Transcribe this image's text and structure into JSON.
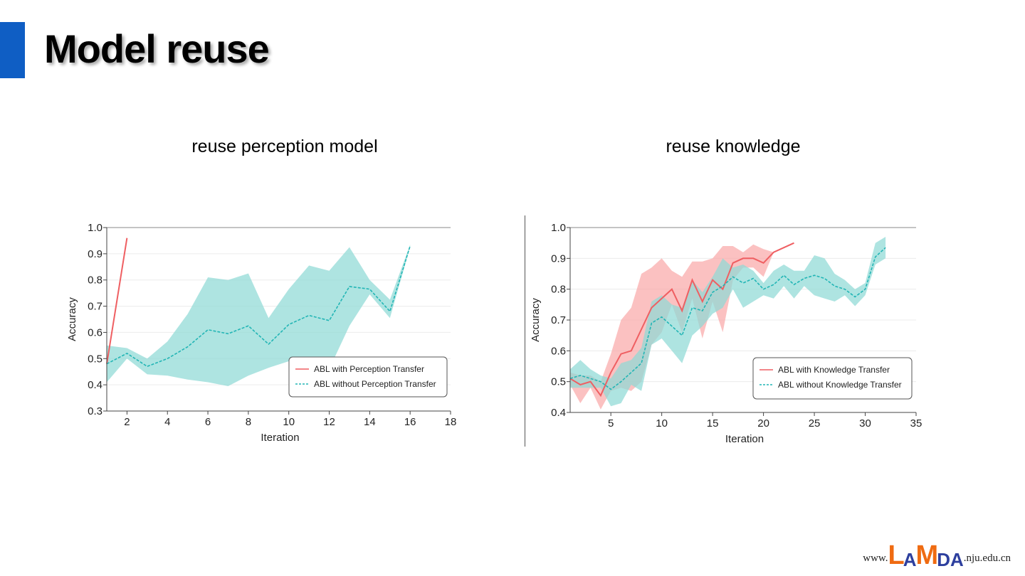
{
  "slide": {
    "title": "Model reuse"
  },
  "footer": {
    "prefix": "www.",
    "logo_letters": [
      "L",
      "A",
      "M",
      "DA"
    ],
    "suffix": ".nju.edu.cn"
  },
  "colors": {
    "accent_bar": "#0f5ec4",
    "red_line": "#ef5f62",
    "red_band": "#f9b2b2",
    "teal_line": "#22b5b5",
    "teal_band": "#a6e2e0",
    "logo_orange": "#ef6b12",
    "logo_blue": "#2d3f9e"
  },
  "chart_data": [
    {
      "type": "line",
      "title": "reuse perception model",
      "xlabel": "Iteration",
      "ylabel": "Accuracy",
      "xlim": [
        1,
        18
      ],
      "ylim": [
        0.3,
        1.0
      ],
      "xticks": [
        2,
        4,
        6,
        8,
        10,
        12,
        14,
        16,
        18
      ],
      "yticks": [
        0.3,
        0.4,
        0.5,
        0.6,
        0.7,
        0.8,
        0.9,
        1.0
      ],
      "grid": "horizontal",
      "legend_position": "bottom-right",
      "series": [
        {
          "name": "ABL  with Perception Transfer",
          "style": "solid",
          "color": "#ef5f62",
          "x": [
            1,
            2
          ],
          "values": [
            0.48,
            0.96
          ]
        },
        {
          "name": "ABL  without Perception Transfer",
          "style": "dashed",
          "color": "#22b5b5",
          "x": [
            1,
            2,
            3,
            4,
            5,
            6,
            7,
            8,
            9,
            10,
            11,
            12,
            13,
            14,
            15,
            16
          ],
          "values": [
            0.48,
            0.52,
            0.47,
            0.5,
            0.545,
            0.61,
            0.595,
            0.625,
            0.555,
            0.63,
            0.665,
            0.645,
            0.775,
            0.765,
            0.68,
            0.93
          ],
          "band_upper": [
            0.55,
            0.54,
            0.5,
            0.565,
            0.67,
            0.81,
            0.8,
            0.825,
            0.655,
            0.765,
            0.855,
            0.835,
            0.925,
            0.8,
            0.725,
            0.935
          ],
          "band_lower": [
            0.41,
            0.5,
            0.44,
            0.435,
            0.42,
            0.41,
            0.395,
            0.435,
            0.465,
            0.49,
            0.475,
            0.46,
            0.625,
            0.745,
            0.655,
            0.925
          ]
        }
      ]
    },
    {
      "type": "line",
      "title": "reuse knowledge",
      "xlabel": "Iteration",
      "ylabel": "Accuracy",
      "xlim": [
        1,
        35
      ],
      "ylim": [
        0.4,
        1.0
      ],
      "xticks": [
        5,
        10,
        15,
        20,
        25,
        30,
        35
      ],
      "yticks": [
        0.4,
        0.5,
        0.6,
        0.7,
        0.8,
        0.9,
        1.0
      ],
      "grid": "horizontal",
      "legend_position": "bottom-right",
      "series": [
        {
          "name": "ABL  with Knowledge Transfer",
          "style": "solid",
          "color": "#ef5f62",
          "x": [
            1,
            2,
            3,
            4,
            5,
            6,
            7,
            8,
            9,
            10,
            11,
            12,
            13,
            14,
            15,
            16,
            17,
            18,
            19,
            20,
            21,
            22,
            23
          ],
          "values": [
            0.51,
            0.49,
            0.5,
            0.455,
            0.53,
            0.59,
            0.6,
            0.67,
            0.74,
            0.77,
            0.8,
            0.73,
            0.83,
            0.76,
            0.83,
            0.8,
            0.885,
            0.9,
            0.9,
            0.885,
            0.92,
            0.935,
            0.95
          ],
          "band_upper": [
            0.53,
            0.52,
            0.52,
            0.5,
            0.59,
            0.7,
            0.74,
            0.85,
            0.87,
            0.9,
            0.86,
            0.84,
            0.89,
            0.89,
            0.9,
            0.94,
            0.94,
            0.92,
            0.945,
            0.93,
            0.92,
            0.935,
            0.95
          ],
          "band_lower": [
            0.49,
            0.43,
            0.48,
            0.41,
            0.47,
            0.48,
            0.47,
            0.5,
            0.62,
            0.66,
            0.75,
            0.66,
            0.77,
            0.64,
            0.76,
            0.66,
            0.83,
            0.87,
            0.87,
            0.84,
            0.92,
            0.935,
            0.95
          ]
        },
        {
          "name": "ABL  without Knowledge Transfer",
          "style": "dashed",
          "color": "#22b5b5",
          "x": [
            1,
            2,
            3,
            4,
            5,
            6,
            7,
            8,
            9,
            10,
            11,
            12,
            13,
            14,
            15,
            16,
            17,
            18,
            19,
            20,
            21,
            22,
            23,
            24,
            25,
            26,
            27,
            28,
            29,
            30,
            31,
            32
          ],
          "values": [
            0.51,
            0.52,
            0.51,
            0.5,
            0.475,
            0.5,
            0.53,
            0.56,
            0.69,
            0.71,
            0.68,
            0.65,
            0.74,
            0.73,
            0.79,
            0.81,
            0.84,
            0.82,
            0.835,
            0.8,
            0.815,
            0.845,
            0.815,
            0.835,
            0.845,
            0.835,
            0.81,
            0.8,
            0.775,
            0.8,
            0.905,
            0.935
          ],
          "band_upper": [
            0.54,
            0.57,
            0.54,
            0.52,
            0.51,
            0.56,
            0.57,
            0.61,
            0.76,
            0.78,
            0.75,
            0.74,
            0.83,
            0.79,
            0.84,
            0.9,
            0.87,
            0.88,
            0.86,
            0.82,
            0.86,
            0.88,
            0.86,
            0.86,
            0.91,
            0.9,
            0.85,
            0.83,
            0.8,
            0.82,
            0.95,
            0.97
          ],
          "band_lower": [
            0.48,
            0.48,
            0.48,
            0.48,
            0.42,
            0.43,
            0.49,
            0.47,
            0.62,
            0.64,
            0.6,
            0.56,
            0.65,
            0.68,
            0.72,
            0.74,
            0.8,
            0.74,
            0.76,
            0.78,
            0.77,
            0.81,
            0.77,
            0.81,
            0.78,
            0.77,
            0.76,
            0.78,
            0.745,
            0.78,
            0.88,
            0.9
          ]
        }
      ]
    }
  ]
}
